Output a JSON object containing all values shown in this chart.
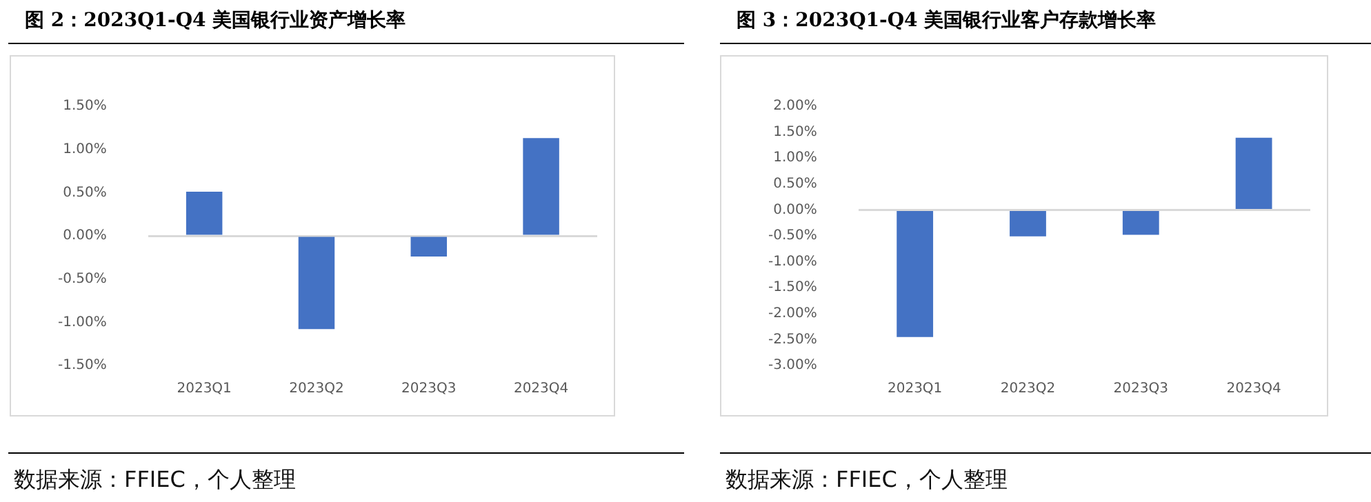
{
  "chart_data": [
    {
      "type": "bar",
      "title": "图 2：2023Q1-Q4  美国银行业资产增长率",
      "categories": [
        "2023Q1",
        "2023Q2",
        "2023Q3",
        "2023Q4"
      ],
      "values": [
        0.51,
        -1.08,
        -0.24,
        1.13
      ],
      "color": "#4472c4",
      "ylim": [
        -1.5,
        1.5
      ],
      "yticks": [
        {
          "value": -1.5,
          "label": "-1.50%"
        },
        {
          "value": -1,
          "label": "-1.00%"
        },
        {
          "value": -0.5,
          "label": "-0.50%"
        },
        {
          "value": 0,
          "label": "0.00%"
        },
        {
          "value": 0.5,
          "label": "0.50%"
        },
        {
          "value": 1,
          "label": "1.00%"
        },
        {
          "value": 1.5,
          "label": "1.50%"
        }
      ],
      "annotations": [
        "数据来源：FFIEC，个人整理"
      ]
    },
    {
      "type": "bar",
      "title": "图 3：2023Q1-Q4  美国银行业客户存款增长率",
      "categories": [
        "2023Q1",
        "2023Q2",
        "2023Q3",
        "2023Q4"
      ],
      "values": [
        -2.45,
        -0.51,
        -0.48,
        1.39
      ],
      "color": "#4472c4",
      "ylim": [
        -3,
        2
      ],
      "yticks": [
        {
          "value": -3,
          "label": "-3.00%"
        },
        {
          "value": -2.5,
          "label": "-2.50%"
        },
        {
          "value": -2,
          "label": "-2.00%"
        },
        {
          "value": -1.5,
          "label": "-1.50%"
        },
        {
          "value": -1,
          "label": "-1.00%"
        },
        {
          "value": -0.5,
          "label": "-0.50%"
        },
        {
          "value": 0,
          "label": "0.00%"
        },
        {
          "value": 0.5,
          "label": "0.50%"
        },
        {
          "value": 1,
          "label": "1.00%"
        },
        {
          "value": 1.5,
          "label": "1.50%"
        },
        {
          "value": 2,
          "label": "2.00%"
        }
      ],
      "annotations": [
        "数据来源：FFIEC，个人整理"
      ]
    }
  ]
}
